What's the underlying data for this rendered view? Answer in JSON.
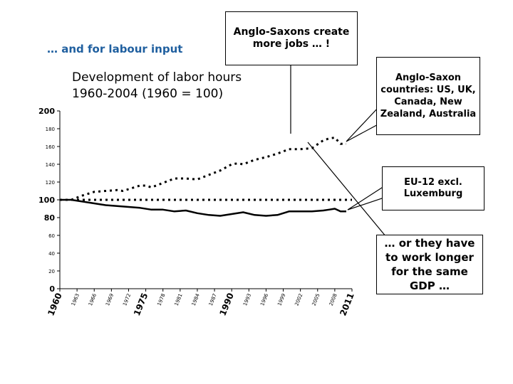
{
  "slide": {
    "heading": "… and for labour input"
  },
  "callouts": {
    "jobs": "Anglo-Saxons create more jobs … !",
    "anglo": "Anglo-Saxon countries: US, UK, Canada, New Zealand, Australia",
    "eu": "EU-12 excl. Luxemburg",
    "gdp": "… or they have to work longer for the same GDP …"
  },
  "colors": {
    "heading": "#1f5f9f",
    "series": "#000000"
  },
  "chart_data": {
    "type": "line",
    "title": "Development of labor hours\n1960-2004  (1960 = 100)",
    "xlabel": "",
    "ylabel": "",
    "ylim": [
      0,
      200
    ],
    "xlim": [
      1960,
      2011
    ],
    "grid": false,
    "y_ticks": [
      {
        "value": 0,
        "label": "0",
        "emph": true
      },
      {
        "value": 20,
        "label": "20",
        "emph": false
      },
      {
        "value": 40,
        "label": "40",
        "emph": false
      },
      {
        "value": 60,
        "label": "60",
        "emph": false
      },
      {
        "value": 80,
        "label": "80",
        "emph": true
      },
      {
        "value": 100,
        "label": "100",
        "emph": true
      },
      {
        "value": 120,
        "label": "120",
        "emph": false
      },
      {
        "value": 140,
        "label": "140",
        "emph": false
      },
      {
        "value": 160,
        "label": "160",
        "emph": false
      },
      {
        "value": 180,
        "label": "180",
        "emph": false
      },
      {
        "value": 200,
        "label": "200",
        "emph": true
      }
    ],
    "x_ticks": [
      {
        "value": 1960,
        "label": "1960",
        "emph": true
      },
      {
        "value": 1963,
        "label": "1963",
        "emph": false
      },
      {
        "value": 1966,
        "label": "1966",
        "emph": false
      },
      {
        "value": 1969,
        "label": "1969",
        "emph": false
      },
      {
        "value": 1972,
        "label": "1972",
        "emph": false
      },
      {
        "value": 1975,
        "label": "1975",
        "emph": true
      },
      {
        "value": 1978,
        "label": "1978",
        "emph": false
      },
      {
        "value": 1981,
        "label": "1981",
        "emph": false
      },
      {
        "value": 1984,
        "label": "1984",
        "emph": false
      },
      {
        "value": 1987,
        "label": "1987",
        "emph": false
      },
      {
        "value": 1990,
        "label": "1990",
        "emph": true
      },
      {
        "value": 1993,
        "label": "1993",
        "emph": false
      },
      {
        "value": 1996,
        "label": "1996",
        "emph": false
      },
      {
        "value": 1999,
        "label": "1999",
        "emph": false
      },
      {
        "value": 2002,
        "label": "2002",
        "emph": false
      },
      {
        "value": 2005,
        "label": "2005",
        "emph": false
      },
      {
        "value": 2008,
        "label": "2008",
        "emph": false
      },
      {
        "value": 2011,
        "label": "2011",
        "emph": true
      }
    ],
    "series": [
      {
        "style": "dotted",
        "x": [
          1960,
          1962,
          1964,
          1966,
          1968,
          1970,
          1971,
          1972,
          1974,
          1975,
          1976,
          1978,
          1980,
          1982,
          1984,
          1986,
          1988,
          1990,
          1991,
          1992,
          1994,
          1996,
          1998,
          2000,
          2002,
          2004,
          2006,
          2007,
          2008,
          2009,
          2010
        ],
        "y": [
          100,
          100,
          105,
          109,
          110,
          111,
          110,
          112,
          116,
          116,
          114,
          119,
          124,
          124,
          123,
          128,
          133,
          140,
          141,
          140,
          145,
          148,
          152,
          157,
          157,
          158,
          167,
          169,
          170,
          163,
          163
        ]
      },
      {
        "style": "solid",
        "x": [
          1960,
          1962,
          1964,
          1966,
          1968,
          1970,
          1972,
          1974,
          1976,
          1978,
          1980,
          1982,
          1984,
          1986,
          1988,
          1990,
          1992,
          1994,
          1996,
          1998,
          2000,
          2002,
          2004,
          2006,
          2007,
          2008,
          2009,
          2010
        ],
        "y": [
          100,
          100,
          98,
          96,
          94,
          93,
          92,
          91,
          89,
          89,
          87,
          88,
          85,
          83,
          82,
          84,
          86,
          83,
          82,
          83,
          87,
          87,
          87,
          88,
          89,
          90,
          87,
          87
        ]
      },
      {
        "style": "dotted",
        "x": [
          1960,
          2011
        ],
        "y": [
          100,
          100
        ]
      }
    ]
  }
}
